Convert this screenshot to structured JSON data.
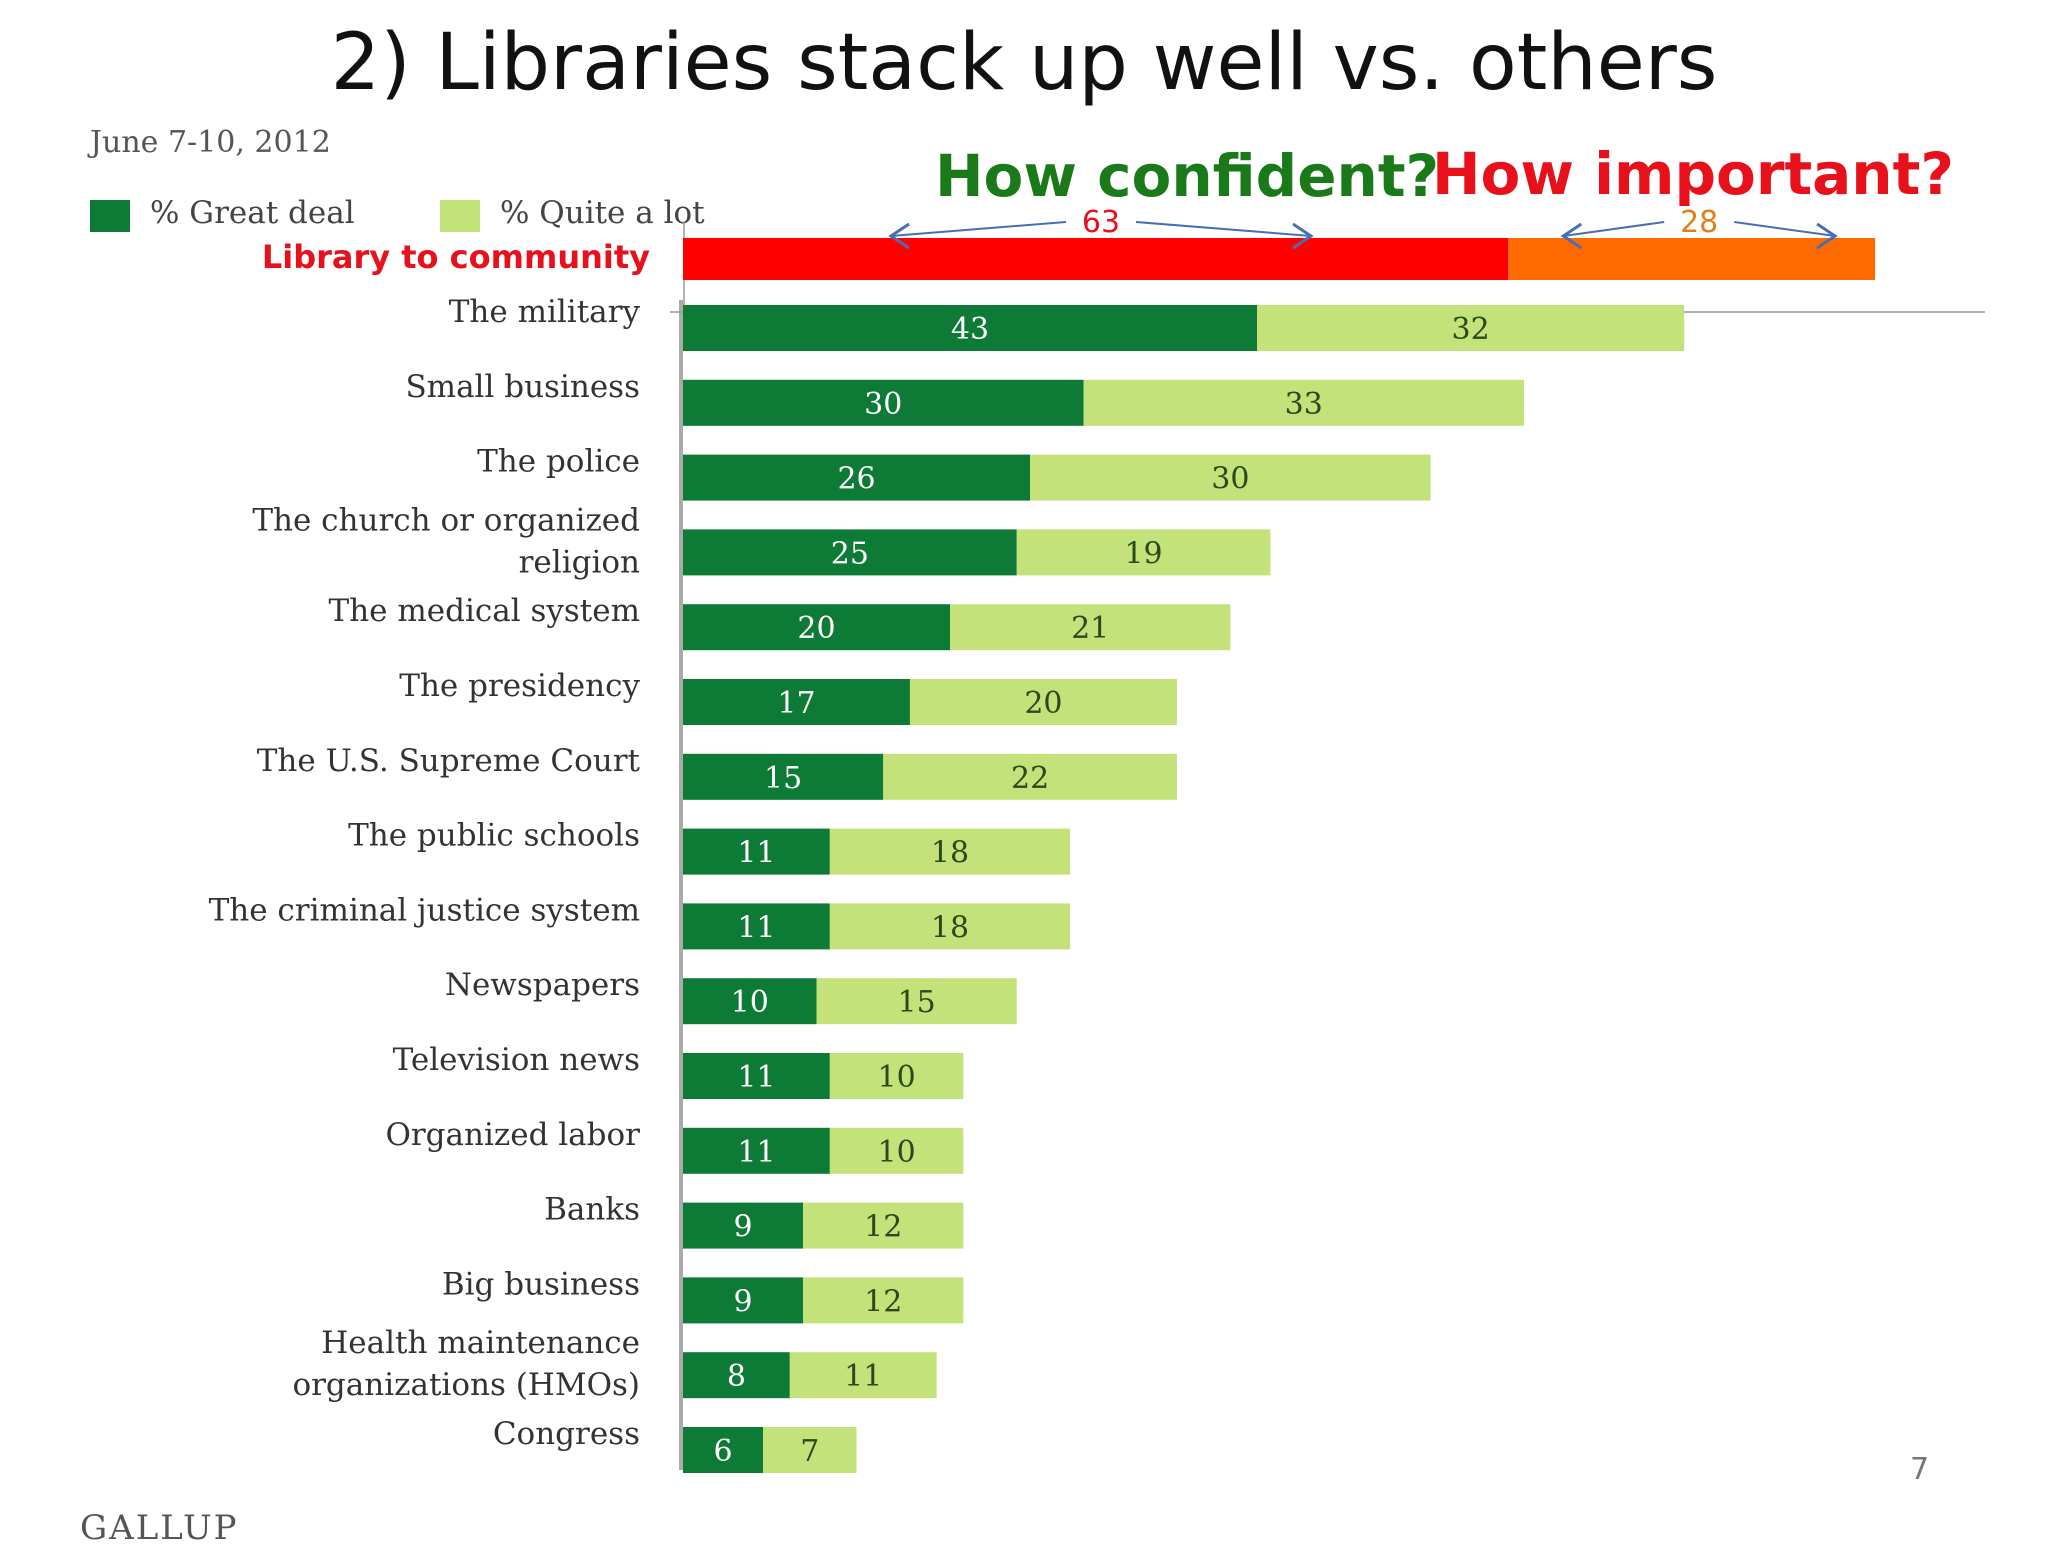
{
  "slide": {
    "title": "2) Libraries stack up well vs. others",
    "date": "June 7-10, 2012",
    "confident_question": "How confident?",
    "important_question": "How important?",
    "page_number": "7",
    "logo": "GALLUP"
  },
  "colors": {
    "great_deal": "#0d7a35",
    "quite_a_lot": "#c3e37a",
    "library_confident": "#ff0000",
    "library_important": "#ff6a00",
    "arrow": "#4a6fb0"
  },
  "chart_data": {
    "type": "bar",
    "orientation": "horizontal",
    "stacked": true,
    "legend": [
      "% Great deal",
      "% Quite a lot"
    ],
    "legend_position": "top-left",
    "library": {
      "label": "Library to community",
      "confident": 63,
      "important": 28
    },
    "categories": [
      "The military",
      "Small business",
      "The police",
      "The church or organized religion",
      "The medical system",
      "The presidency",
      "The U.S. Supreme Court",
      "The public schools",
      "The criminal justice system",
      "Newspapers",
      "Television news",
      "Organized labor",
      "Banks",
      "Big business",
      "Health maintenance organizations (HMOs)",
      "Congress"
    ],
    "series": [
      {
        "name": "% Great deal",
        "values": [
          43,
          30,
          26,
          25,
          20,
          17,
          15,
          11,
          11,
          10,
          11,
          11,
          9,
          9,
          8,
          6
        ]
      },
      {
        "name": "% Quite a lot",
        "values": [
          32,
          33,
          30,
          19,
          21,
          20,
          22,
          18,
          18,
          15,
          10,
          10,
          12,
          12,
          11,
          7
        ]
      }
    ],
    "xlim": [
      0,
      100
    ]
  }
}
